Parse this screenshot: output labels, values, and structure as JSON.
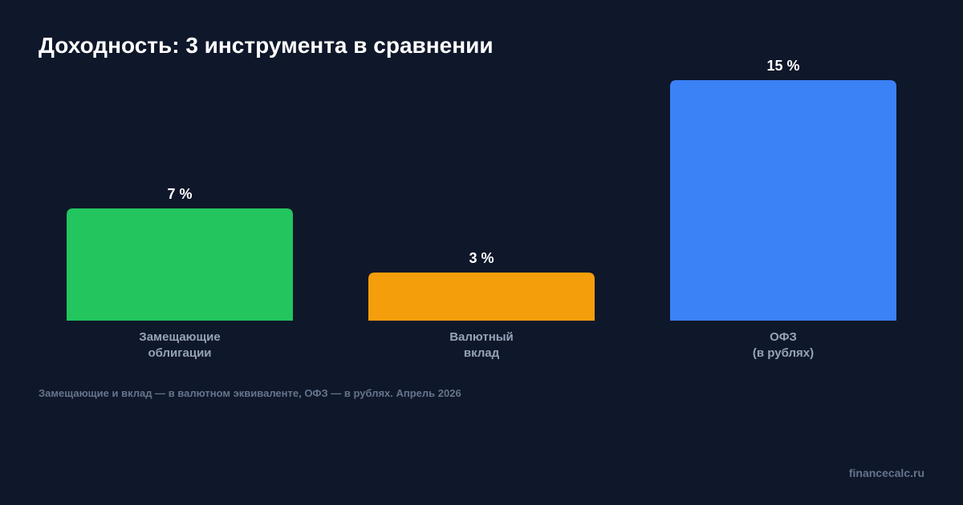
{
  "chart_data": {
    "type": "bar",
    "title": "Доходность: 3 инструмента в сравнении",
    "categories": [
      [
        "Замещающие",
        "облигации"
      ],
      [
        "Валютный",
        "вклад"
      ],
      [
        "ОФЗ",
        "(в рублях)"
      ]
    ],
    "values": [
      7,
      3,
      15
    ],
    "value_labels": [
      "7 %",
      "3 %",
      "15 %"
    ],
    "colors": [
      "#22c55e",
      "#f59e0b",
      "#3b82f6"
    ],
    "note": "Замещающие и вклад — в валютном эквиваленте, ОФЗ — в рублях. Апрель 2026",
    "source": "financecalc.ru"
  }
}
